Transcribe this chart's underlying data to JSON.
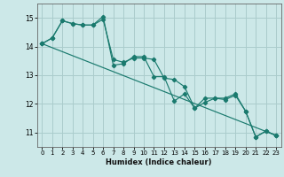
{
  "title": "",
  "xlabel": "Humidex (Indice chaleur)",
  "ylabel": "",
  "xlim": [
    -0.5,
    23.5
  ],
  "ylim": [
    10.5,
    15.5
  ],
  "yticks": [
    11,
    12,
    13,
    14,
    15
  ],
  "xticks": [
    0,
    1,
    2,
    3,
    4,
    5,
    6,
    7,
    8,
    9,
    10,
    11,
    12,
    13,
    14,
    15,
    16,
    17,
    18,
    19,
    20,
    21,
    22,
    23
  ],
  "bg_color": "#cce8e8",
  "grid_color": "#aacccc",
  "line_color": "#1a7a6e",
  "line1": [
    [
      0,
      14.1
    ],
    [
      1,
      14.3
    ],
    [
      2,
      14.9
    ],
    [
      3,
      14.8
    ],
    [
      4,
      14.75
    ],
    [
      5,
      14.75
    ],
    [
      6,
      15.05
    ],
    [
      7,
      13.35
    ],
    [
      8,
      13.4
    ],
    [
      9,
      13.65
    ],
    [
      10,
      13.65
    ],
    [
      11,
      12.95
    ],
    [
      12,
      12.95
    ],
    [
      13,
      12.1
    ],
    [
      14,
      12.35
    ],
    [
      15,
      11.85
    ],
    [
      16,
      12.05
    ],
    [
      17,
      12.2
    ],
    [
      18,
      12.2
    ],
    [
      19,
      12.35
    ],
    [
      20,
      11.75
    ],
    [
      21,
      10.85
    ],
    [
      22,
      11.05
    ],
    [
      23,
      10.9
    ]
  ],
  "line2": [
    [
      0,
      14.1
    ],
    [
      1,
      14.3
    ],
    [
      2,
      14.9
    ],
    [
      3,
      14.8
    ],
    [
      4,
      14.75
    ],
    [
      5,
      14.75
    ],
    [
      6,
      14.95
    ],
    [
      7,
      13.55
    ],
    [
      8,
      13.45
    ],
    [
      9,
      13.6
    ],
    [
      10,
      13.6
    ],
    [
      11,
      13.55
    ],
    [
      12,
      12.9
    ],
    [
      13,
      12.85
    ],
    [
      14,
      12.6
    ],
    [
      15,
      11.85
    ],
    [
      16,
      12.2
    ],
    [
      17,
      12.2
    ],
    [
      18,
      12.15
    ],
    [
      19,
      12.3
    ],
    [
      20,
      11.75
    ],
    [
      21,
      10.85
    ],
    [
      22,
      11.05
    ],
    [
      23,
      10.9
    ]
  ],
  "line3": [
    [
      0,
      14.1
    ],
    [
      23,
      10.9
    ]
  ]
}
